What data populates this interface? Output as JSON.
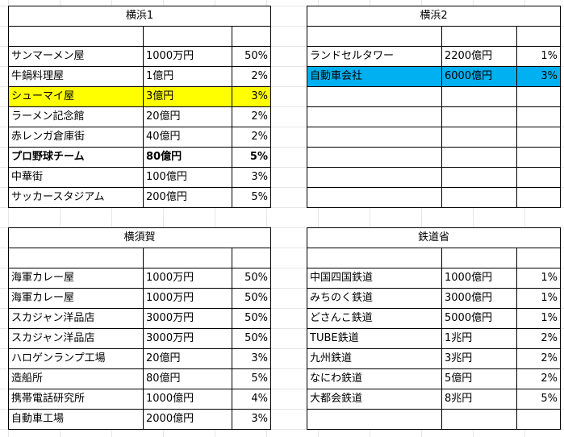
{
  "tables": [
    {
      "title": "横浜1",
      "rows": [
        {
          "name": "サンマーメン屋",
          "amount": "1000万円",
          "pct": "50%"
        },
        {
          "name": "牛鍋料理屋",
          "amount": "1億円",
          "pct": "2%"
        },
        {
          "name": "シューマイ屋",
          "amount": "3億円",
          "pct": "3%",
          "highlight": "yellow"
        },
        {
          "name": "ラーメン記念館",
          "amount": "20億円",
          "pct": "2%"
        },
        {
          "name": "赤レンガ倉庫街",
          "amount": "40億円",
          "pct": "2%"
        },
        {
          "name": "プロ野球チーム",
          "amount": "80億円",
          "pct": "5%",
          "bold": true
        },
        {
          "name": "中華街",
          "amount": "100億円",
          "pct": "3%"
        },
        {
          "name": "サッカースタジアム",
          "amount": "200億円",
          "pct": "5%"
        }
      ]
    },
    {
      "title": "横浜2",
      "rows": [
        {
          "name": "ランドセルタワー",
          "amount": "2200億円",
          "pct": "1%"
        },
        {
          "name": "自動車会社",
          "amount": "6000億円",
          "pct": "3%",
          "highlight": "blue"
        },
        {
          "name": "",
          "amount": "",
          "pct": ""
        },
        {
          "name": "",
          "amount": "",
          "pct": ""
        },
        {
          "name": "",
          "amount": "",
          "pct": ""
        },
        {
          "name": "",
          "amount": "",
          "pct": ""
        },
        {
          "name": "",
          "amount": "",
          "pct": ""
        },
        {
          "name": "",
          "amount": "",
          "pct": ""
        }
      ]
    },
    {
      "title": "横須賀",
      "rows": [
        {
          "name": "海軍カレー屋",
          "amount": "1000万円",
          "pct": "50%"
        },
        {
          "name": "海軍カレー屋",
          "amount": "1000万円",
          "pct": "50%"
        },
        {
          "name": "スカジャン洋品店",
          "amount": "3000万円",
          "pct": "50%"
        },
        {
          "name": "スカジャン洋品店",
          "amount": "3000万円",
          "pct": "50%"
        },
        {
          "name": "ハロゲンランプ工場",
          "amount": "20億円",
          "pct": "3%"
        },
        {
          "name": "造船所",
          "amount": "80億円",
          "pct": "5%"
        },
        {
          "name": "携帯電話研究所",
          "amount": "1000億円",
          "pct": "4%"
        },
        {
          "name": "自動車工場",
          "amount": "2000億円",
          "pct": "3%"
        }
      ]
    },
    {
      "title": "鉄道省",
      "rows": [
        {
          "name": "中国四国鉄道",
          "amount": "1000億円",
          "pct": "1%"
        },
        {
          "name": "みちのく鉄道",
          "amount": "3000億円",
          "pct": "1%"
        },
        {
          "name": "どさんこ鉄道",
          "amount": "5000億円",
          "pct": "1%"
        },
        {
          "name": "TUBE鉄道",
          "amount": "1兆円",
          "pct": "2%"
        },
        {
          "name": "九州鉄道",
          "amount": "3兆円",
          "pct": "2%"
        },
        {
          "name": "なにわ鉄道",
          "amount": "5億円",
          "pct": "2%"
        },
        {
          "name": "大都会鉄道",
          "amount": "8兆円",
          "pct": "5%"
        },
        {
          "name": "",
          "amount": "",
          "pct": ""
        }
      ]
    }
  ]
}
